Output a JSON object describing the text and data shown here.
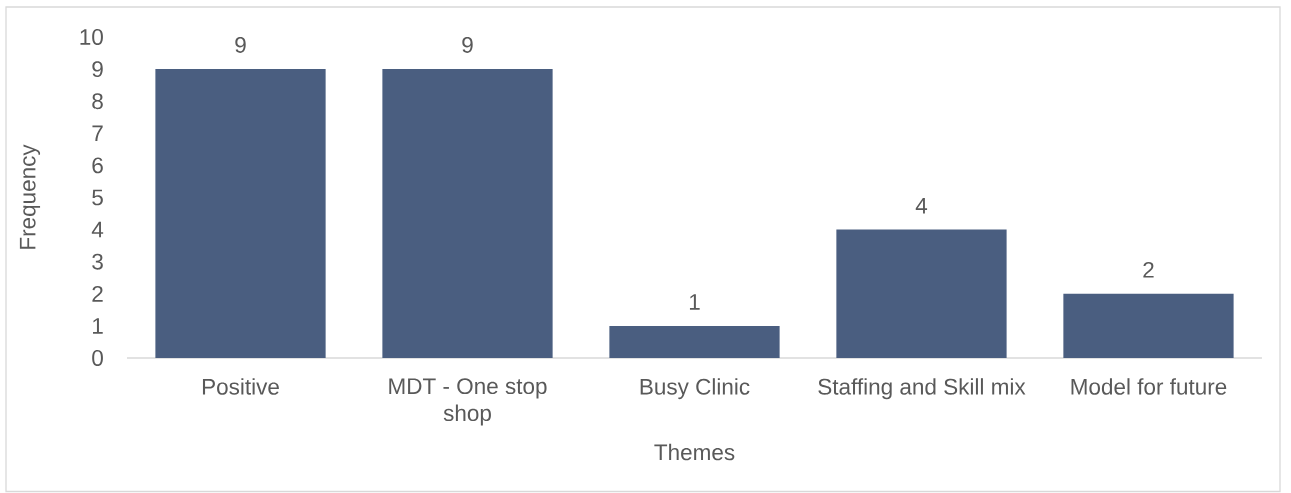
{
  "chart_data": {
    "type": "bar",
    "xlabel": "Themes",
    "ylabel": "Frequency",
    "categories": [
      "Positive",
      "MDT - One stop shop",
      "Busy Clinic",
      "Staffing and Skill mix",
      "Model for future"
    ],
    "values": [
      9,
      9,
      1,
      4,
      2
    ],
    "color": "#4a5e80",
    "ylim": [
      0,
      10
    ],
    "yticks": [
      0,
      1,
      2,
      3,
      4,
      5,
      6,
      7,
      8,
      9,
      10
    ],
    "data_labels": true
  }
}
